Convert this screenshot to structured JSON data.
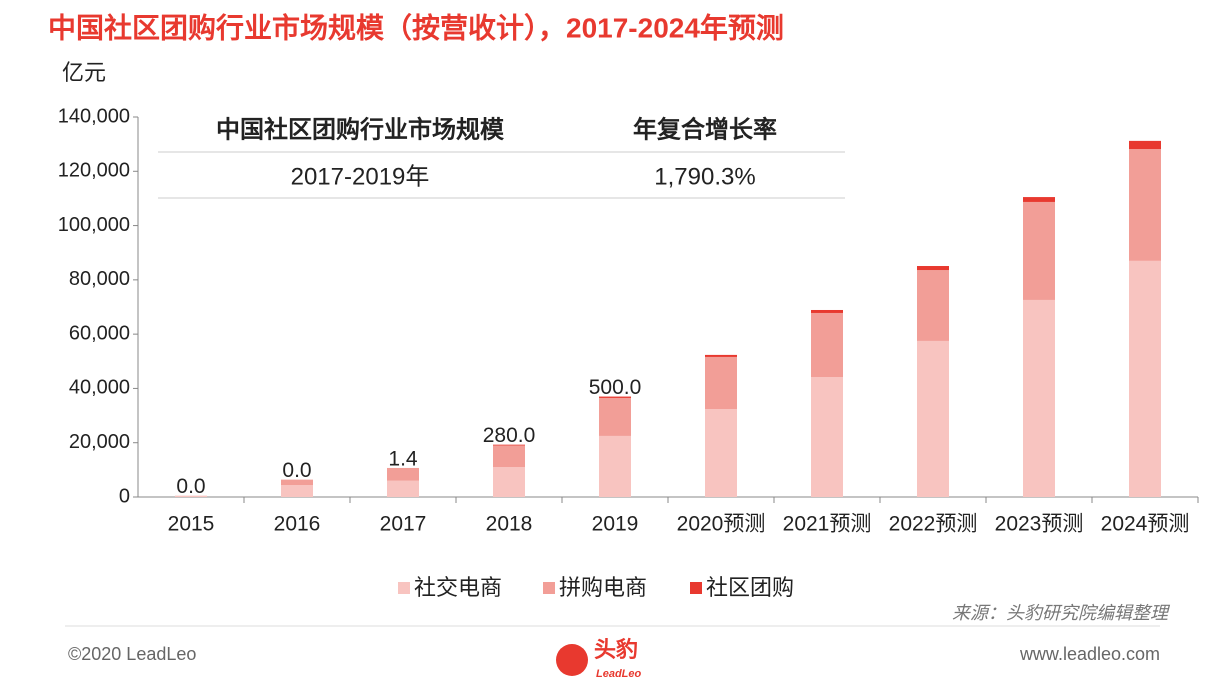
{
  "chart_data": {
    "type": "bar",
    "stacked": true,
    "title": "中国社区团购行业市场规模（按营收计），2017-2024年预测",
    "y_axis_label": "亿元",
    "categories": [
      "2015",
      "2016",
      "2017",
      "2018",
      "2019",
      "2020预测",
      "2021预测",
      "2022预测",
      "2023预测",
      "2024预测"
    ],
    "series": [
      {
        "name": "社交电商",
        "color": "#f8c4c0",
        "values": [
          500,
          4400,
          6000,
          11000,
          22500,
          32400,
          44200,
          57500,
          72600,
          87000
        ]
      },
      {
        "name": "拼购电商",
        "color": "#f29e97",
        "values": [
          0,
          2000,
          4700,
          8000,
          14000,
          19200,
          23600,
          26100,
          36100,
          41200
        ]
      },
      {
        "name": "社区团购",
        "color": "#e8392f",
        "values": [
          0,
          0,
          1.4,
          280,
          500,
          750,
          1100,
          1500,
          1800,
          3000
        ],
        "value_labels": [
          "0.0",
          "0.0",
          "1.4",
          "280.0",
          "500.0",
          null,
          null,
          null,
          null,
          null
        ]
      }
    ],
    "ylim": [
      0,
      140000
    ],
    "yticks": [
      0,
      {
        "value": 20000,
        "label": "20,000"
      },
      {
        "value": 40000,
        "label": "40,000"
      },
      {
        "value": 60000,
        "label": "60,000"
      },
      {
        "value": 80000,
        "label": "80,000"
      },
      {
        "value": 100000,
        "label": "100,000"
      },
      {
        "value": 120000,
        "label": "120,000"
      },
      {
        "value": 140000,
        "label": "140,000"
      }
    ],
    "grid": false,
    "legend": "bottom",
    "table": {
      "header": [
        "中国社区团购行业市场规模",
        "年复合增长率"
      ],
      "row": [
        "2017-2019年",
        "1,790.3%"
      ]
    },
    "source": "来源：头豹研究院编辑整理",
    "footer": {
      "copyright": "©2020 LeadLeo",
      "logo": "头豹",
      "logo_sub": "LeadLeo",
      "url": "www.leadleo.com"
    }
  }
}
